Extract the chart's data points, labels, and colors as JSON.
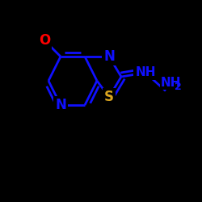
{
  "background_color": "#000000",
  "bond_color": "#1010FF",
  "atom_colors": {
    "S": "#DAA520",
    "N": "#1010FF",
    "O": "#FF0000",
    "C": "#1010FF"
  },
  "figsize": [
    2.5,
    2.5
  ],
  "dpi": 100
}
